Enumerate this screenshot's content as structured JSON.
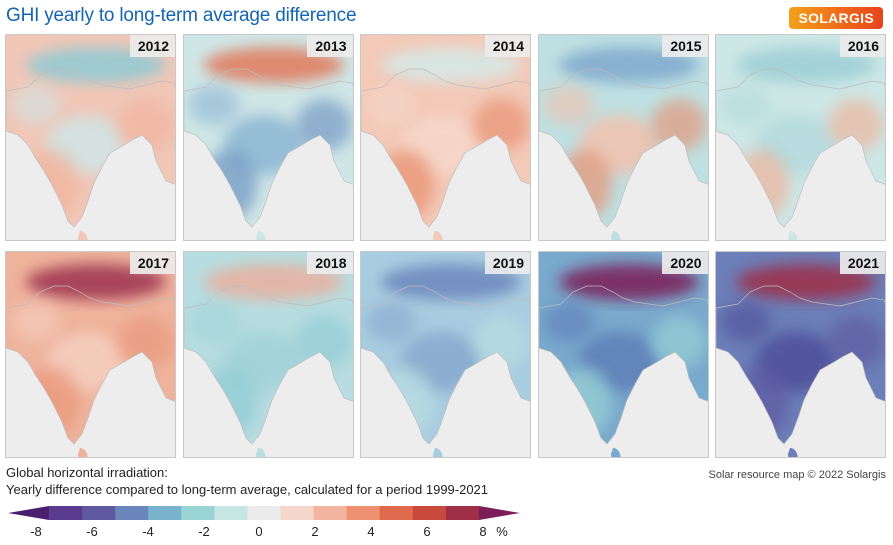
{
  "title": "GHI yearly to long-term average difference",
  "logo": "SOLARGIS",
  "caption_line1": "Global horizontal irradiation:",
  "caption_line2": "Yearly difference compared to long-term average, calculated for a period 1999-2021",
  "credit": "Solar resource map © 2022 Solargis",
  "legend": {
    "unit": "%",
    "ticks": [
      "-8",
      "-6",
      "-4",
      "-2",
      "0",
      "2",
      "4",
      "6",
      "8"
    ],
    "colors": [
      "#4a1f6e",
      "#5a3a8c",
      "#5e59a1",
      "#6a86bc",
      "#79b2cd",
      "#9ad3d6",
      "#c7e5e2",
      "#ececec",
      "#f6d7cc",
      "#f3b59f",
      "#ee9170",
      "#e06a4d",
      "#c84a3c",
      "#9e2f46",
      "#7c1e57"
    ]
  },
  "panels": [
    {
      "year": "2012",
      "tone": [
        "#f1c7b7",
        "#cfe5e5",
        "#f0b49d",
        "#8fcad4"
      ]
    },
    {
      "year": "2013",
      "tone": [
        "#cfe6e6",
        "#8bb6d3",
        "#6e94c2",
        "#e07a5c"
      ]
    },
    {
      "year": "2014",
      "tone": [
        "#f3c9b8",
        "#f6d8cb",
        "#e88f6e",
        "#d6e9e8"
      ]
    },
    {
      "year": "2015",
      "tone": [
        "#bfe0e2",
        "#f2c1ae",
        "#e59475",
        "#7fa8cc"
      ]
    },
    {
      "year": "2016",
      "tone": [
        "#cde7e6",
        "#b4dadd",
        "#f0b39a",
        "#9ccfd6"
      ]
    },
    {
      "year": "2017",
      "tone": [
        "#efb39c",
        "#f4cfbf",
        "#e9977a",
        "#9c3150"
      ]
    },
    {
      "year": "2018",
      "tone": [
        "#b7dde0",
        "#a0d3d7",
        "#8fcad4",
        "#e9b09f"
      ]
    },
    {
      "year": "2019",
      "tone": [
        "#a9cde0",
        "#86a9cd",
        "#b9dfe1",
        "#6a86bc"
      ]
    },
    {
      "year": "2020",
      "tone": [
        "#79a9cc",
        "#5f7fb8",
        "#9ad3d6",
        "#7c1e57"
      ]
    },
    {
      "year": "2021",
      "tone": [
        "#6c7fb8",
        "#4f4f9a",
        "#5e59a1",
        "#9e2f46"
      ]
    }
  ]
}
